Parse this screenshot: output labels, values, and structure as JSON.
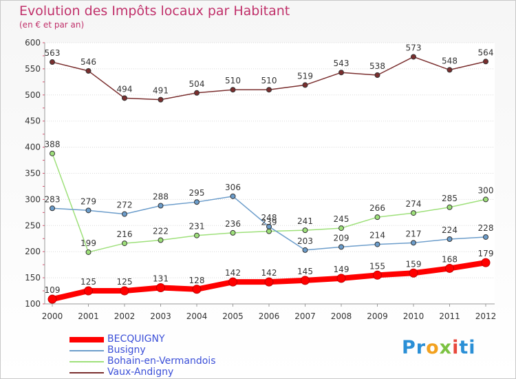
{
  "chart_data": {
    "type": "line",
    "title": "Evolution des Impôts locaux par Habitant",
    "subtitle": "(en € et par an)",
    "x": [
      2000,
      2001,
      2002,
      2003,
      2004,
      2005,
      2006,
      2007,
      2008,
      2009,
      2010,
      2011,
      2012
    ],
    "ylim": [
      100,
      600
    ],
    "yticks": [
      100,
      150,
      200,
      250,
      300,
      350,
      400,
      450,
      500,
      550,
      600
    ],
    "grid": "horizontal",
    "legend_position": "bottom-left",
    "series": [
      {
        "name": "BECQUIGNY",
        "color": "#ff0000",
        "values": [
          109,
          125,
          125,
          131,
          128,
          142,
          142,
          145,
          149,
          155,
          159,
          168,
          179
        ]
      },
      {
        "name": "Busigny",
        "color": "#6c9dcb",
        "values": [
          283,
          279,
          272,
          288,
          295,
          306,
          248,
          203,
          209,
          214,
          217,
          224,
          228
        ]
      },
      {
        "name": "Bohain-en-Vermandois",
        "color": "#9ee07a",
        "values": [
          388,
          199,
          216,
          222,
          231,
          236,
          239,
          241,
          245,
          266,
          274,
          285,
          300
        ]
      },
      {
        "name": "Vaux-Andigny",
        "color": "#7a2e2e",
        "values": [
          563,
          546,
          494,
          491,
          504,
          510,
          510,
          519,
          543,
          538,
          573,
          548,
          564
        ]
      }
    ]
  },
  "logo": {
    "p1": "Pr",
    "p2": "o",
    "p3": "x",
    "p4": "i",
    "p5": "ti"
  }
}
